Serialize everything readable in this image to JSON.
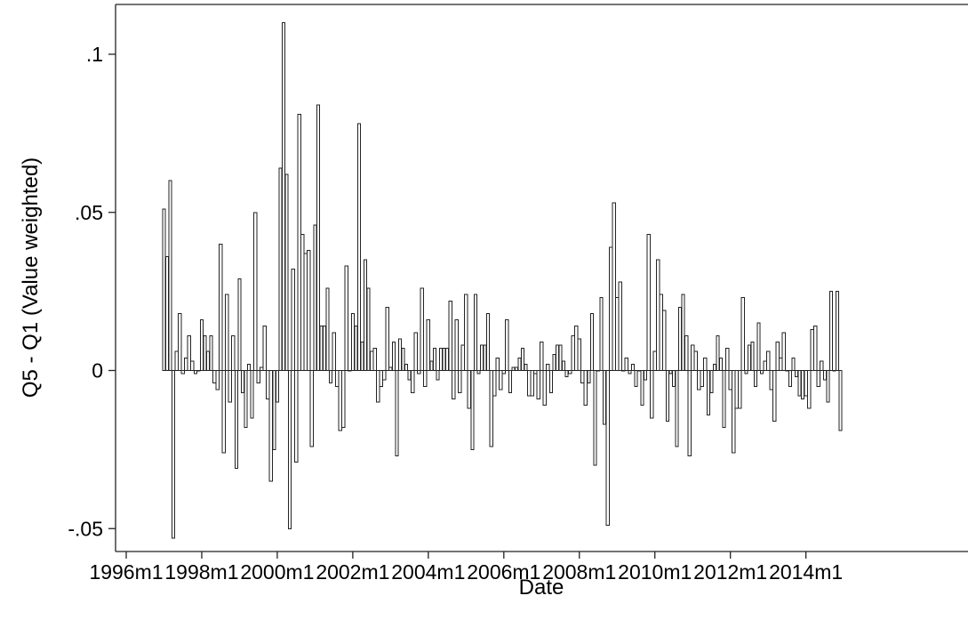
{
  "chart_data": {
    "type": "bar",
    "xlabel": "Date",
    "ylabel": "Q5 - Q1 (Value weighted)",
    "ylim": [
      -0.052,
      0.113
    ],
    "yticks": [
      {
        "value": -0.05,
        "label": "-.05"
      },
      {
        "value": 0,
        "label": "0"
      },
      {
        "value": 0.05,
        "label": ".05"
      },
      {
        "value": 0.1,
        "label": ".1"
      }
    ],
    "xticks": [
      "1996m1",
      "1998m1",
      "2000m1",
      "2002m1",
      "2004m1",
      "2006m1",
      "2008m1",
      "2010m1",
      "2012m1",
      "2014m1"
    ],
    "grid": false,
    "legend": "none",
    "x_start": "1997m1",
    "x_end": "2014m12",
    "values": [
      0.051,
      0.036,
      0.06,
      -0.053,
      0.006,
      0.018,
      -0.001,
      0.004,
      0.011,
      0.003,
      -0.001,
      0.0,
      0.016,
      0.011,
      0.006,
      0.011,
      -0.004,
      -0.006,
      0.04,
      -0.026,
      0.024,
      -0.01,
      0.011,
      -0.031,
      0.029,
      -0.007,
      -0.018,
      0.002,
      -0.015,
      0.05,
      -0.004,
      0.001,
      0.014,
      -0.009,
      -0.035,
      -0.025,
      -0.01,
      0.064,
      0.11,
      0.062,
      -0.05,
      0.032,
      -0.029,
      0.081,
      0.043,
      0.037,
      0.038,
      -0.024,
      0.046,
      0.084,
      0.014,
      0.014,
      0.026,
      -0.004,
      0.012,
      -0.005,
      -0.019,
      -0.018,
      0.033,
      0.0,
      0.018,
      0.014,
      0.078,
      0.009,
      0.035,
      0.026,
      0.006,
      0.007,
      -0.01,
      -0.005,
      -0.003,
      0.02,
      0.001,
      0.009,
      -0.027,
      0.01,
      0.007,
      0.002,
      -0.003,
      -0.007,
      0.012,
      -0.001,
      0.026,
      -0.005,
      0.016,
      0.003,
      0.007,
      -0.003,
      0.007,
      0.007,
      0.007,
      0.022,
      -0.009,
      0.016,
      -0.007,
      0.008,
      0.024,
      -0.012,
      -0.025,
      0.024,
      -0.001,
      0.008,
      0.008,
      0.018,
      -0.024,
      -0.008,
      0.004,
      -0.006,
      -0.001,
      0.016,
      -0.007,
      0.001,
      0.001,
      0.004,
      0.007,
      0.002,
      -0.008,
      -0.008,
      -0.001,
      -0.009,
      0.009,
      -0.011,
      0.002,
      -0.007,
      0.005,
      0.008,
      0.008,
      0.003,
      -0.002,
      -0.001,
      0.011,
      0.014,
      0.01,
      -0.004,
      -0.011,
      -0.004,
      0.018,
      -0.03,
      0.0,
      0.023,
      -0.017,
      -0.049,
      0.039,
      0.053,
      0.023,
      0.028,
      0.0,
      0.004,
      -0.001,
      0.002,
      -0.005,
      0.0,
      -0.011,
      -0.003,
      0.043,
      -0.015,
      0.006,
      0.035,
      0.024,
      0.019,
      -0.016,
      -0.001,
      -0.005,
      -0.024,
      0.02,
      0.024,
      0.011,
      -0.027,
      0.008,
      0.006,
      -0.006,
      -0.005,
      0.004,
      -0.014,
      -0.007,
      0.002,
      0.011,
      0.004,
      -0.018,
      0.007,
      -0.006,
      -0.026,
      -0.012,
      -0.012,
      0.023,
      -0.001,
      0.008,
      0.009,
      -0.005,
      0.015,
      -0.001,
      0.003,
      0.006,
      -0.006,
      -0.016,
      0.009,
      0.004,
      0.012,
      0.0,
      -0.005,
      0.004,
      -0.002,
      -0.008,
      -0.009,
      -0.008,
      -0.012,
      0.013,
      0.014,
      -0.005,
      0.003,
      -0.003,
      -0.01,
      0.025,
      0.0,
      0.025,
      -0.019
    ]
  }
}
